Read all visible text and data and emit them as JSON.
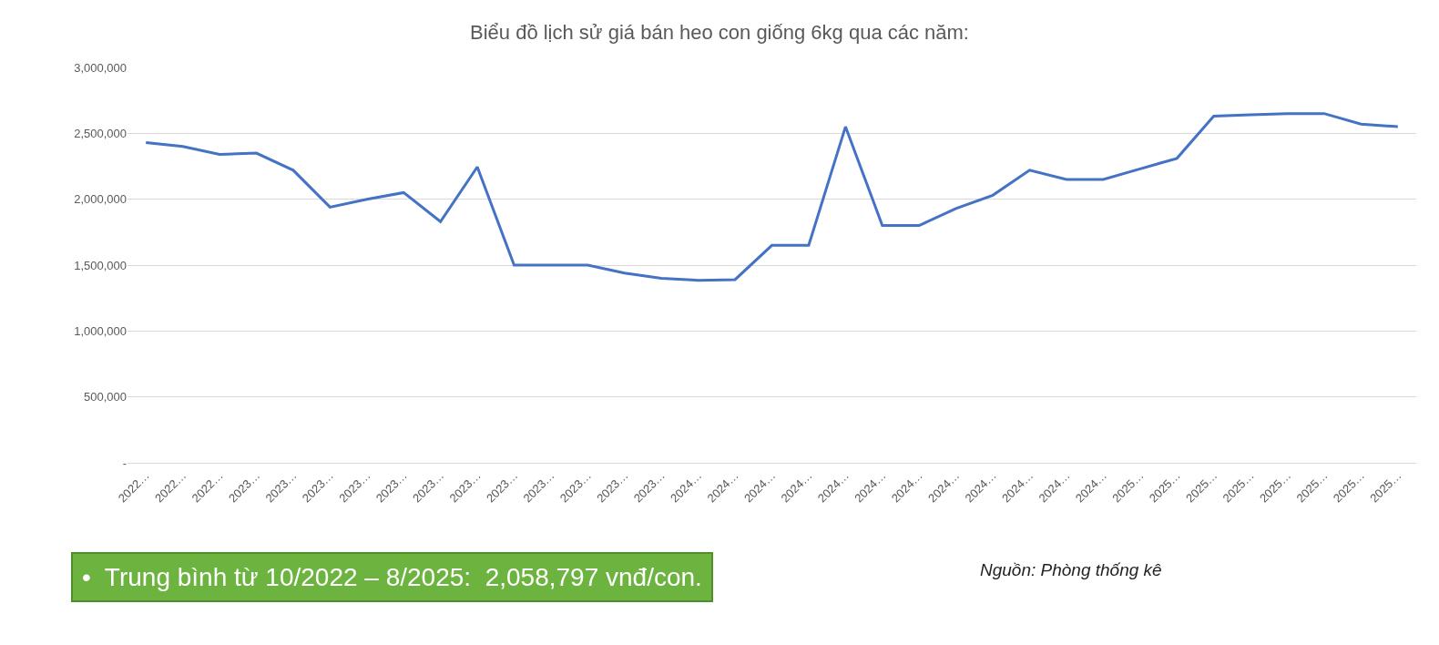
{
  "chart_data": {
    "type": "line",
    "title": "Biểu đồ lịch sử giá bán heo con giống 6kg qua các năm:",
    "categories": [
      "2022…",
      "2022…",
      "2022…",
      "2023…",
      "2023…",
      "2023…",
      "2023…",
      "2023…",
      "2023…",
      "2023…",
      "2023…",
      "2023…",
      "2023…",
      "2023…",
      "2023…",
      "2024…",
      "2024…",
      "2024…",
      "2024…",
      "2024…",
      "2024…",
      "2024…",
      "2024…",
      "2024…",
      "2024…",
      "2024…",
      "2024…",
      "2025…",
      "2025…",
      "2025…",
      "2025…",
      "2025…",
      "2025…",
      "2025…",
      "2025…"
    ],
    "series": [
      {
        "color": "#4472c4",
        "values": [
          2430000,
          2400000,
          2340000,
          2350000,
          2220000,
          1940000,
          2000000,
          2050000,
          1830000,
          2245000,
          1500000,
          1500000,
          1500000,
          1440000,
          1400000,
          1385000,
          1390000,
          1650000,
          1650000,
          2550000,
          1800000,
          1800000,
          1930000,
          2030000,
          2220000,
          2150000,
          2150000,
          2230000,
          2310000,
          2630000,
          2640000,
          2650000,
          2650000,
          2570000,
          2550000
        ]
      }
    ],
    "ylim": [
      0,
      3000000
    ],
    "yticks": [
      {
        "value": 0,
        "label": "-"
      },
      {
        "value": 500000,
        "label": "500,000"
      },
      {
        "value": 1000000,
        "label": "1,000,000"
      },
      {
        "value": 1500000,
        "label": "1,500,000"
      },
      {
        "value": 2000000,
        "label": "2,000,000"
      },
      {
        "value": 2500000,
        "label": "2,500,000"
      },
      {
        "value": 3000000,
        "label": "3,000,000"
      }
    ],
    "grid": "y",
    "marker": "none",
    "line_style": "solid",
    "annotations": [
      "•  Trung bình từ 10/2022 – 8/2025:  2,058,797 vnđ/con.",
      "Nguồn: Phòng thống kê"
    ]
  }
}
